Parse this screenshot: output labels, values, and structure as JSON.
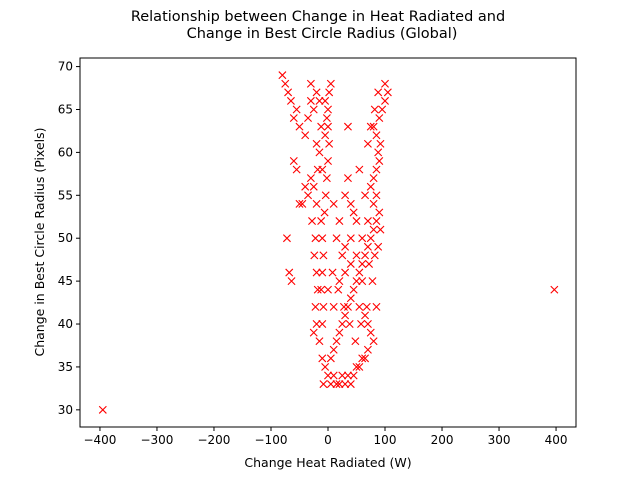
{
  "chart_data": {
    "type": "scatter",
    "title_line1": "Relationship between Change in Heat Radiated and",
    "title_line2": "Change in Best Circle Radius (Global)",
    "xlabel": "Change Heat Radiated (W)",
    "ylabel": "Change in Best Circle Radius (Pixels)",
    "xlim": [
      -435,
      435
    ],
    "ylim": [
      28,
      71
    ],
    "xticks": [
      -400,
      -300,
      -200,
      -100,
      0,
      100,
      200,
      300,
      400
    ],
    "xtick_labels": [
      "−400",
      "−300",
      "−200",
      "−100",
      "0",
      "100",
      "200",
      "300",
      "400"
    ],
    "yticks": [
      30,
      35,
      40,
      45,
      50,
      55,
      60,
      65,
      70
    ],
    "ytick_labels": [
      "30",
      "35",
      "40",
      "45",
      "50",
      "55",
      "60",
      "65",
      "70"
    ],
    "marker": "x",
    "color": "#ff0000",
    "series": [
      {
        "values": [
          [
            -395,
            30
          ],
          [
            397,
            44
          ],
          [
            -68,
            46
          ],
          [
            -64,
            45
          ],
          [
            -72,
            50
          ],
          [
            -60,
            59
          ],
          [
            -50,
            54
          ],
          [
            -55,
            58
          ],
          [
            -40,
            62
          ],
          [
            -50,
            63
          ],
          [
            -60,
            64
          ],
          [
            -55,
            65
          ],
          [
            -65,
            66
          ],
          [
            -70,
            67
          ],
          [
            -75,
            68
          ],
          [
            -80,
            69
          ],
          [
            -45,
            54
          ],
          [
            -35,
            55
          ],
          [
            -30,
            57
          ],
          [
            -25,
            56
          ],
          [
            -20,
            54
          ],
          [
            -28,
            52
          ],
          [
            -22,
            50
          ],
          [
            -24,
            48
          ],
          [
            -20,
            46
          ],
          [
            -18,
            44
          ],
          [
            -22,
            42
          ],
          [
            -20,
            40
          ],
          [
            -25,
            39
          ],
          [
            -15,
            38
          ],
          [
            -10,
            36
          ],
          [
            -5,
            35
          ],
          [
            -8,
            33
          ],
          [
            0,
            34
          ],
          [
            5,
            33
          ],
          [
            10,
            34
          ],
          [
            15,
            33
          ],
          [
            20,
            33
          ],
          [
            25,
            34
          ],
          [
            30,
            33
          ],
          [
            35,
            34
          ],
          [
            40,
            33
          ],
          [
            45,
            34
          ],
          [
            50,
            35
          ],
          [
            55,
            35
          ],
          [
            60,
            36
          ],
          [
            65,
            36
          ],
          [
            70,
            37
          ],
          [
            5,
            36
          ],
          [
            10,
            37
          ],
          [
            15,
            38
          ],
          [
            20,
            39
          ],
          [
            25,
            40
          ],
          [
            30,
            41
          ],
          [
            35,
            42
          ],
          [
            40,
            43
          ],
          [
            45,
            44
          ],
          [
            50,
            45
          ],
          [
            55,
            46
          ],
          [
            60,
            47
          ],
          [
            65,
            48
          ],
          [
            70,
            49
          ],
          [
            75,
            50
          ],
          [
            80,
            51
          ],
          [
            85,
            52
          ],
          [
            90,
            53
          ],
          [
            80,
            54
          ],
          [
            85,
            55
          ],
          [
            75,
            56
          ],
          [
            80,
            57
          ],
          [
            85,
            58
          ],
          [
            90,
            59
          ],
          [
            88,
            60
          ],
          [
            92,
            61
          ],
          [
            85,
            62
          ],
          [
            80,
            63
          ],
          [
            90,
            64
          ],
          [
            95,
            65
          ],
          [
            100,
            66
          ],
          [
            105,
            67
          ],
          [
            100,
            68
          ],
          [
            -10,
            40
          ],
          [
            -8,
            42
          ],
          [
            -12,
            44
          ],
          [
            -10,
            46
          ],
          [
            -8,
            48
          ],
          [
            -10,
            50
          ],
          [
            -12,
            52
          ],
          [
            -6,
            53
          ],
          [
            -4,
            55
          ],
          [
            -2,
            57
          ],
          [
            0,
            59
          ],
          [
            2,
            61
          ],
          [
            0,
            63
          ],
          [
            -2,
            64
          ],
          [
            0,
            65
          ],
          [
            -5,
            66
          ],
          [
            2,
            67
          ],
          [
            5,
            68
          ],
          [
            -10,
            58
          ],
          [
            -15,
            60
          ],
          [
            -20,
            61
          ],
          [
            -5,
            62
          ],
          [
            35,
            63
          ],
          [
            35,
            57
          ],
          [
            30,
            55
          ],
          [
            40,
            54
          ],
          [
            45,
            53
          ],
          [
            50,
            52
          ],
          [
            40,
            50
          ],
          [
            30,
            49
          ],
          [
            50,
            48
          ],
          [
            60,
            45
          ],
          [
            55,
            42
          ],
          [
            65,
            41
          ],
          [
            70,
            40
          ],
          [
            75,
            39
          ],
          [
            80,
            38
          ],
          [
            85,
            42
          ],
          [
            78,
            45
          ],
          [
            72,
            47
          ],
          [
            82,
            48
          ],
          [
            88,
            49
          ],
          [
            92,
            51
          ],
          [
            70,
            61
          ],
          [
            75,
            63
          ],
          [
            82,
            65
          ],
          [
            88,
            67
          ],
          [
            -30,
            68
          ],
          [
            -20,
            67
          ],
          [
            -15,
            66
          ],
          [
            -25,
            65
          ],
          [
            -35,
            64
          ],
          [
            -30,
            66
          ],
          [
            10,
            54
          ],
          [
            20,
            52
          ],
          [
            15,
            50
          ],
          [
            25,
            48
          ],
          [
            8,
            46
          ],
          [
            18,
            44
          ],
          [
            28,
            42
          ],
          [
            38,
            40
          ],
          [
            48,
            38
          ],
          [
            58,
            40
          ],
          [
            68,
            42
          ],
          [
            0,
            44
          ],
          [
            10,
            42
          ],
          [
            20,
            45
          ],
          [
            30,
            46
          ],
          [
            40,
            47
          ],
          [
            60,
            50
          ],
          [
            70,
            52
          ],
          [
            65,
            55
          ],
          [
            55,
            58
          ],
          [
            -40,
            56
          ],
          [
            -18,
            58
          ],
          [
            -12,
            63
          ]
        ]
      }
    ]
  }
}
